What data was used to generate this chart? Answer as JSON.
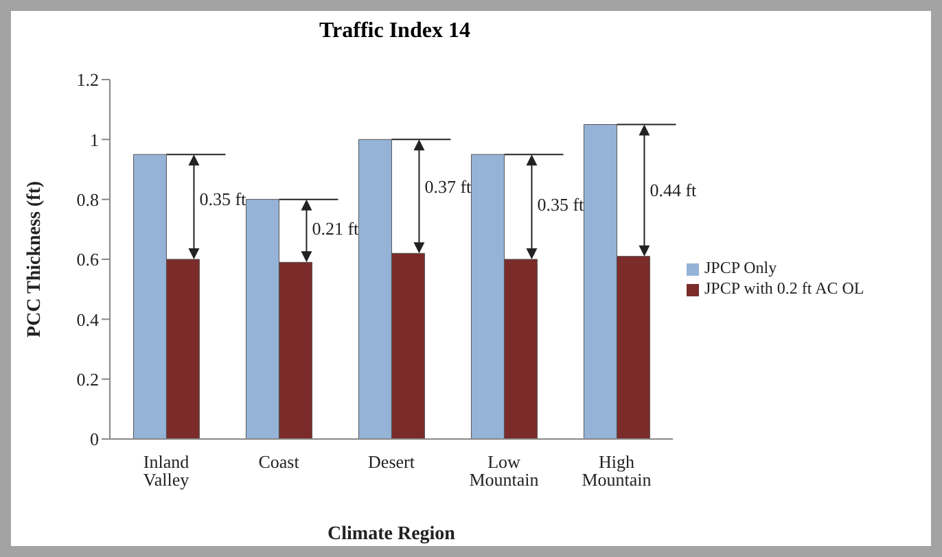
{
  "chart_data": {
    "type": "bar",
    "title": "Traffic Index 14",
    "xlabel": "Climate Region",
    "ylabel": "PCC Thickness (ft)",
    "categories": [
      "Inland Valley",
      "Coast",
      "Desert",
      "Low Mountain",
      "High Mountain"
    ],
    "series": [
      {
        "name": "JPCP Only",
        "color": "#95b3d7",
        "values": [
          0.95,
          0.8,
          1.0,
          0.95,
          1.05
        ]
      },
      {
        "name": "JPCP with 0.2 ft AC OL",
        "color": "#7b2c2a",
        "values": [
          0.6,
          0.59,
          0.62,
          0.6,
          0.61
        ]
      }
    ],
    "ylim": [
      0,
      1.2
    ],
    "yticks": [
      0,
      0.2,
      0.4,
      0.6,
      0.8,
      1,
      1.2
    ],
    "grid": false,
    "legend": "right",
    "annotations": [
      {
        "text": "0.35 ft",
        "x": "Inland Valley",
        "y": 0.8
      },
      {
        "text": "0.21 ft",
        "x": "Coast",
        "y": 0.7
      },
      {
        "text": "0.37 ft",
        "x": "Desert",
        "y": 0.84
      },
      {
        "text": "0.35 ft",
        "x": "Low Mountain",
        "y": 0.78
      },
      {
        "text": "0.44 ft",
        "x": "High Mountain",
        "y": 0.83
      }
    ]
  }
}
